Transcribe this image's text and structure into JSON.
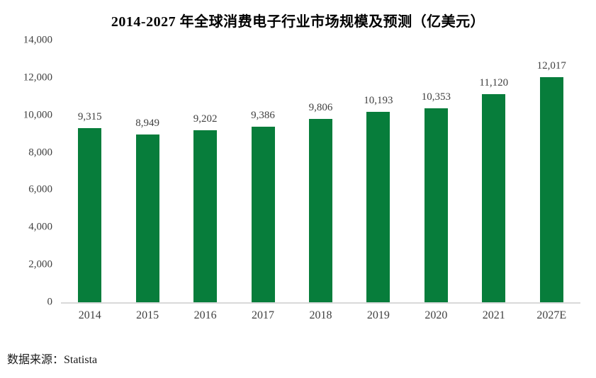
{
  "chart_data": {
    "type": "bar",
    "title": "2014-2027 年全球消费电子行业市场规模及预测（亿美元）",
    "categories": [
      "2014",
      "2015",
      "2016",
      "2017",
      "2018",
      "2019",
      "2020",
      "2021",
      "2027E"
    ],
    "values": [
      9315,
      8949,
      9202,
      9386,
      9806,
      10193,
      10353,
      11120,
      12017
    ],
    "value_labels": [
      "9,315",
      "8,949",
      "9,202",
      "9,386",
      "9,806",
      "10,193",
      "10,353",
      "11,120",
      "12,017"
    ],
    "ylim": [
      0,
      14000
    ],
    "y_ticks": [
      0,
      2000,
      4000,
      6000,
      8000,
      10000,
      12000,
      14000
    ],
    "y_tick_labels": [
      "0",
      "2,000",
      "4,000",
      "6,000",
      "8,000",
      "10,000",
      "12,000",
      "14,000"
    ],
    "xlabel": "",
    "ylabel": "",
    "grid": false,
    "legend": false,
    "bar_color": "#077D3B",
    "label_color": "#404040",
    "axis_line_color": "#D9D9D9"
  },
  "source": {
    "text": "数据来源：Statista"
  }
}
